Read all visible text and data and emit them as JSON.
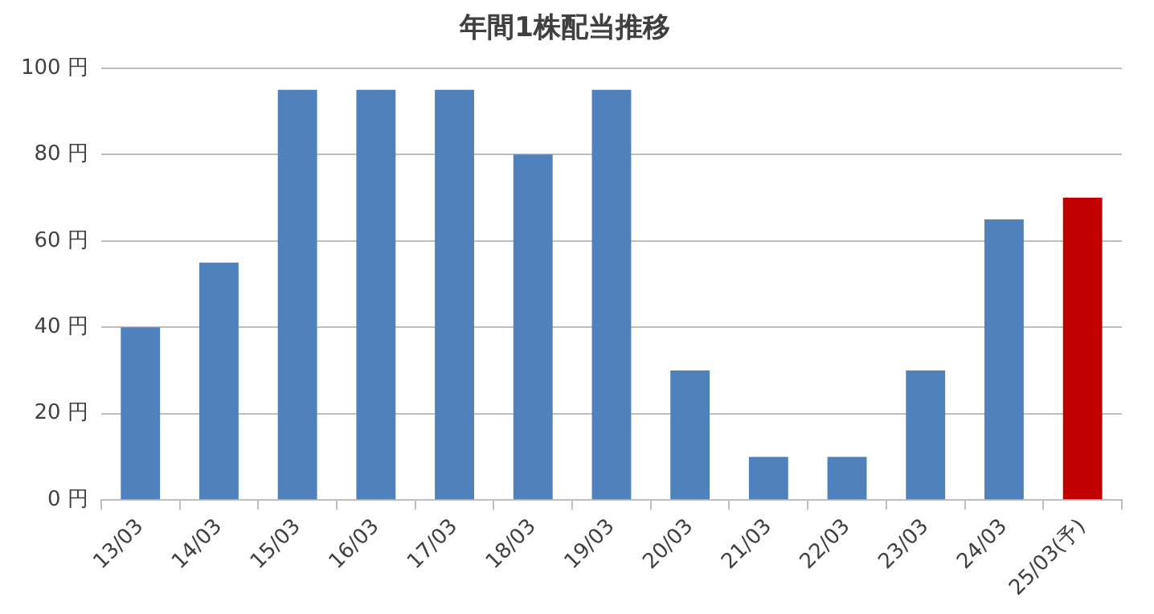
{
  "chart_data": {
    "type": "bar",
    "title": "年間1株配当推移",
    "categories": [
      "13/03",
      "14/03",
      "15/03",
      "16/03",
      "17/03",
      "18/03",
      "19/03",
      "20/03",
      "21/03",
      "22/03",
      "23/03",
      "24/03",
      "25/03(予)"
    ],
    "values": [
      40,
      55,
      95,
      95,
      95,
      80,
      95,
      30,
      10,
      10,
      30,
      65,
      70
    ],
    "colors": [
      "#4f81bd",
      "#4f81bd",
      "#4f81bd",
      "#4f81bd",
      "#4f81bd",
      "#4f81bd",
      "#4f81bd",
      "#4f81bd",
      "#4f81bd",
      "#4f81bd",
      "#4f81bd",
      "#4f81bd",
      "#c00000"
    ],
    "ylim": [
      0,
      100
    ],
    "yticks": [
      {
        "value": 0,
        "label": "0 円"
      },
      {
        "value": 20,
        "label": "20 円"
      },
      {
        "value": 40,
        "label": "40 円"
      },
      {
        "value": 60,
        "label": "60 円"
      },
      {
        "value": 80,
        "label": "80 円"
      },
      {
        "value": 100,
        "label": "100 円"
      }
    ],
    "grid": "y",
    "legend": false
  }
}
